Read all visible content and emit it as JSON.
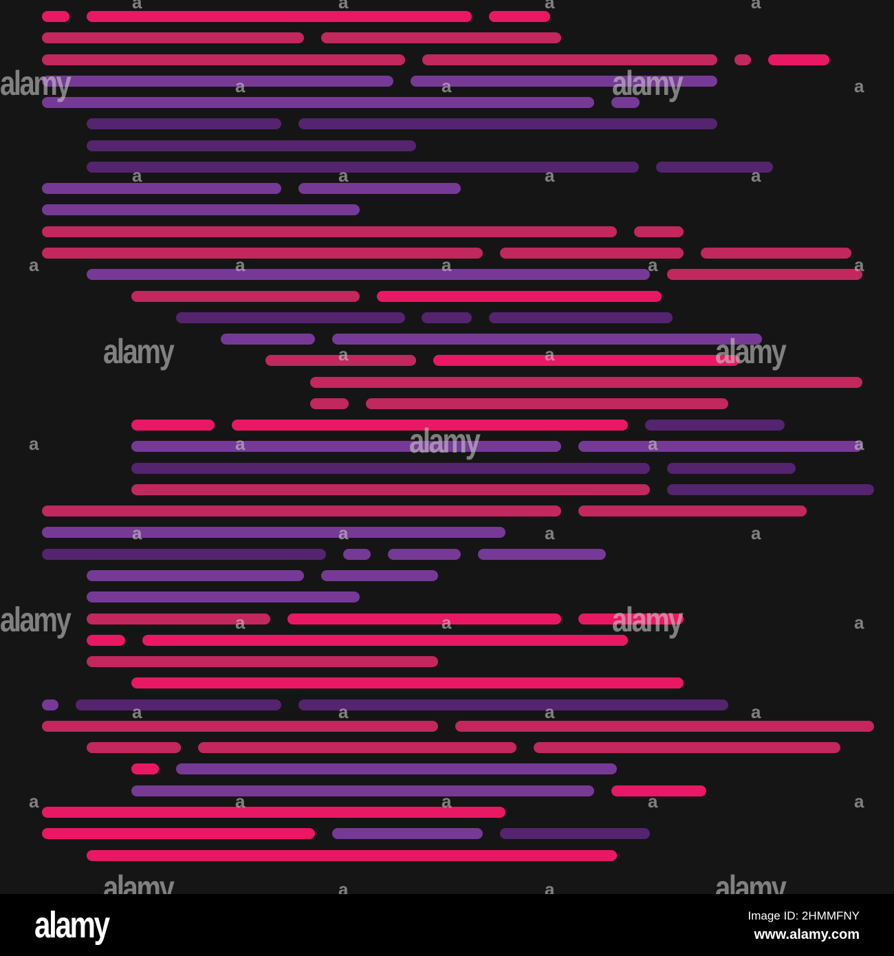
{
  "palette": {
    "background": "#151515",
    "pink": "#e91864",
    "rose": "#c2275e",
    "violet": "#763a96",
    "dark_violet": "#55246e"
  },
  "watermark": {
    "word": "alamy",
    "letter": "a"
  },
  "footer": {
    "logo": "alamy",
    "image_id": "Image ID: 2HMMFNY",
    "site": "www.alamy.com"
  }
}
